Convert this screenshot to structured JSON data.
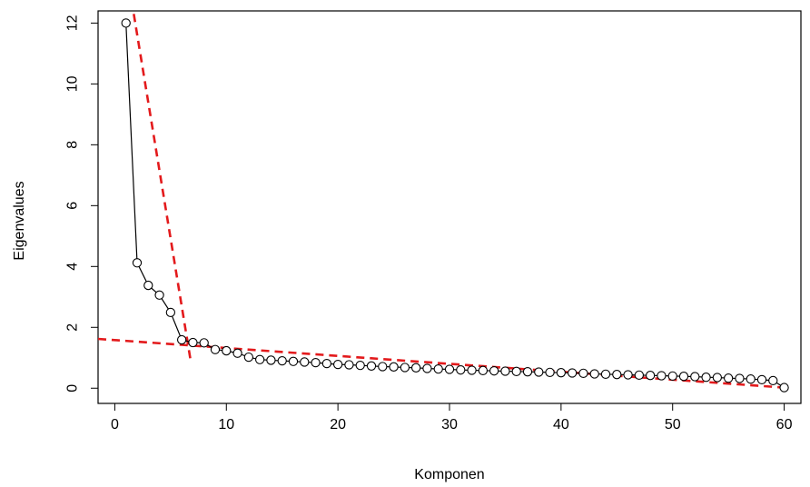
{
  "chart_data": {
    "type": "line",
    "title": "",
    "xlabel": "Komponen",
    "ylabel": "Eigenvalues",
    "xlim": [
      -1.5,
      61.5
    ],
    "ylim": [
      -0.5,
      12.4
    ],
    "x_ticks": [
      0,
      10,
      20,
      30,
      40,
      50,
      60
    ],
    "y_ticks": [
      0,
      2,
      4,
      6,
      8,
      10,
      12
    ],
    "grid": false,
    "legend": "none",
    "x": [
      1,
      2,
      3,
      4,
      5,
      6,
      7,
      8,
      9,
      10,
      11,
      12,
      13,
      14,
      15,
      16,
      17,
      18,
      19,
      20,
      21,
      22,
      23,
      24,
      25,
      26,
      27,
      28,
      29,
      30,
      31,
      32,
      33,
      34,
      35,
      36,
      37,
      38,
      39,
      40,
      41,
      42,
      43,
      44,
      45,
      46,
      47,
      48,
      49,
      50,
      51,
      52,
      53,
      54,
      55,
      56,
      57,
      58,
      59,
      60
    ],
    "series": [
      {
        "values": [
          12.0,
          4.12,
          3.38,
          3.06,
          2.49,
          1.59,
          1.5,
          1.49,
          1.27,
          1.23,
          1.15,
          1.02,
          0.94,
          0.92,
          0.9,
          0.88,
          0.86,
          0.84,
          0.81,
          0.78,
          0.77,
          0.75,
          0.73,
          0.71,
          0.7,
          0.68,
          0.67,
          0.65,
          0.63,
          0.62,
          0.6,
          0.59,
          0.58,
          0.57,
          0.56,
          0.55,
          0.54,
          0.53,
          0.52,
          0.51,
          0.5,
          0.49,
          0.47,
          0.46,
          0.45,
          0.44,
          0.43,
          0.42,
          0.41,
          0.4,
          0.39,
          0.38,
          0.36,
          0.35,
          0.33,
          0.32,
          0.3,
          0.28,
          0.25,
          0.02
        ],
        "color": "#000000",
        "marker": "open-circle"
      }
    ],
    "reference_lines": [
      {
        "x": [
          1.7,
          6.8
        ],
        "y": [
          12.3,
          0.9
        ],
        "color": "#e31a1c",
        "style": "dashed"
      },
      {
        "x": [
          -1.5,
          60
        ],
        "y": [
          1.62,
          0.02
        ],
        "color": "#e31a1c",
        "style": "dashed"
      }
    ]
  }
}
